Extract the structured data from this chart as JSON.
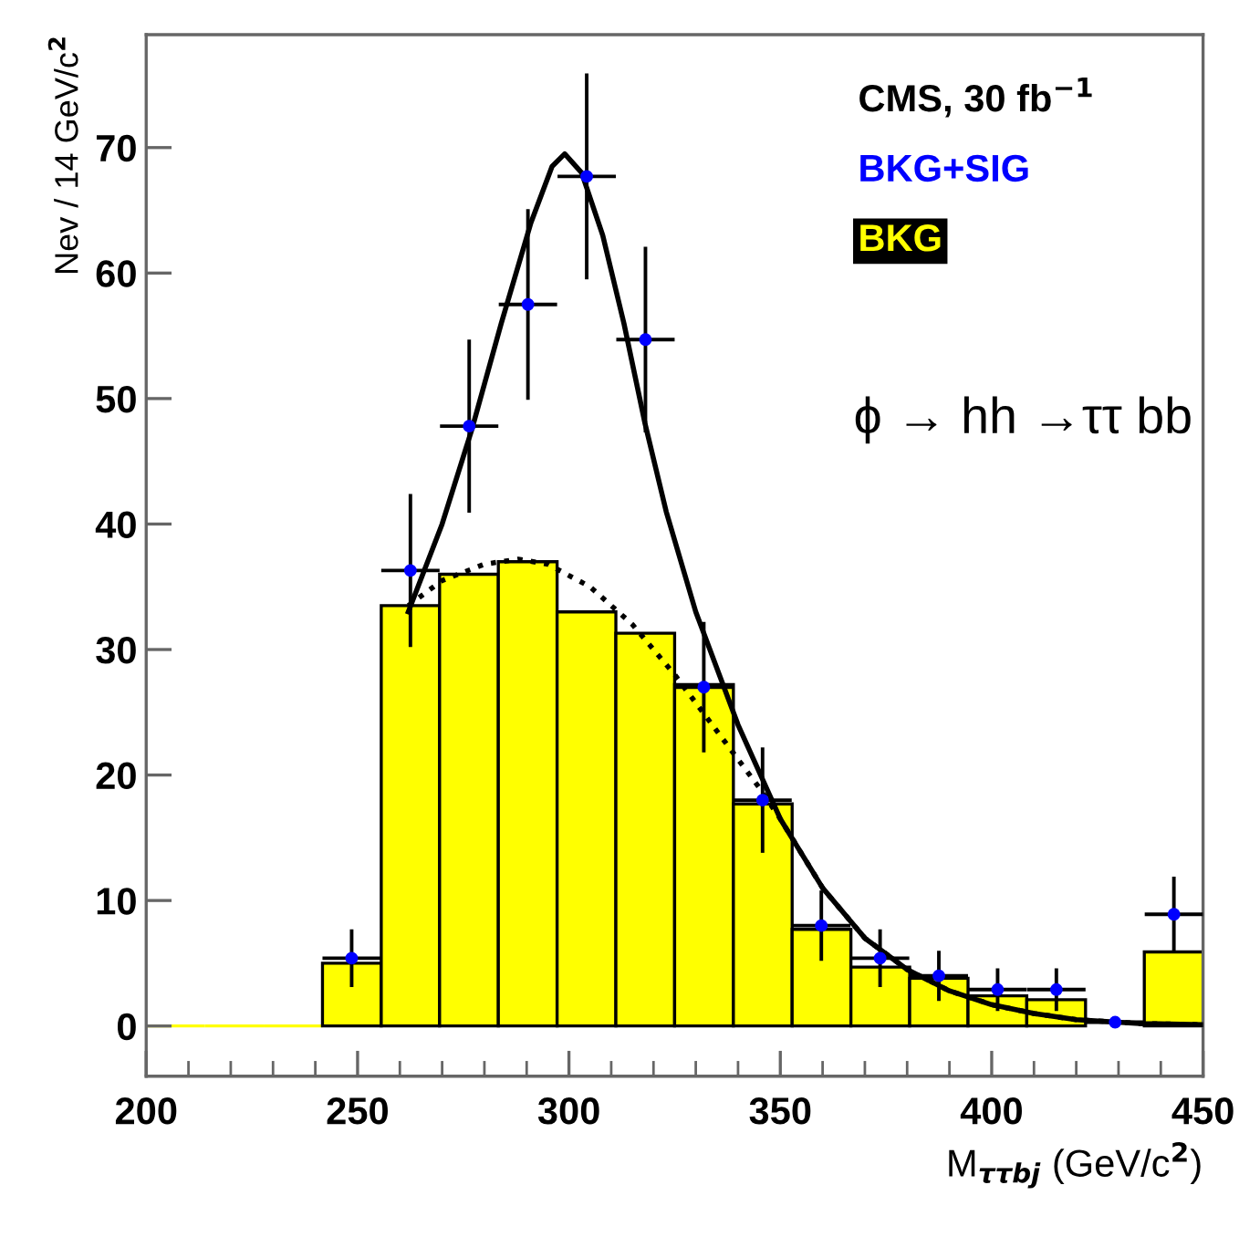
{
  "chart_data": {
    "type": "histogram",
    "xlabel": "M$_{ττbj}$ (GeV/c$^{2}$)",
    "ylabel": "Nev / 14 GeV/c$^{2}$",
    "legend_title": "CMS, 30 fb$^{−1}$",
    "legend": "top right",
    "annotations": [
      "ϕ → hh →ττ bb"
    ],
    "xlim": [
      200,
      450
    ],
    "ylim": [
      -4,
      79
    ],
    "xticks": [
      200,
      {
        "value": 210,
        "label": null
      },
      {
        "value": 220,
        "label": null
      },
      {
        "value": 230,
        "label": null
      },
      {
        "value": 240,
        "label": null
      },
      250,
      {
        "value": 260,
        "label": null
      },
      {
        "value": 270,
        "label": null
      },
      {
        "value": 280,
        "label": null
      },
      {
        "value": 290,
        "label": null
      },
      300,
      {
        "value": 310,
        "label": null
      },
      {
        "value": 320,
        "label": null
      },
      {
        "value": 330,
        "label": null
      },
      {
        "value": 340,
        "label": null
      },
      350,
      {
        "value": 360,
        "label": null
      },
      {
        "value": 370,
        "label": null
      },
      {
        "value": 380,
        "label": null
      },
      {
        "value": 390,
        "label": null
      },
      400,
      {
        "value": 410,
        "label": null
      },
      {
        "value": 420,
        "label": null
      },
      {
        "value": 430,
        "label": null
      },
      {
        "value": 440,
        "label": null
      },
      450
    ],
    "yticks": [
      0,
      10,
      20,
      30,
      40,
      50,
      60,
      70
    ],
    "grid": false,
    "bins": [
      200,
      213.9,
      227.8,
      241.7,
      255.6,
      269.4,
      283.3,
      297.2,
      311.1,
      325,
      338.9,
      352.8,
      366.7,
      380.6,
      394.4,
      408.3,
      422.2,
      436.1,
      450
    ],
    "series": [
      {
        "name": "BKG+SIG",
        "type": "scatter",
        "color": "#0000ff",
        "marker": "circle",
        "x": [
          248.6,
          262.5,
          276.4,
          290.3,
          304.2,
          318.1,
          331.9,
          345.8,
          359.7,
          373.6,
          387.5,
          401.4,
          415.3,
          429.2,
          443.1
        ],
        "values": [
          5.4,
          36.3,
          47.8,
          57.5,
          67.7,
          54.7,
          27,
          18,
          8,
          5.4,
          4,
          2.9,
          2.9,
          0.3,
          8.9
        ],
        "errors": [
          2.3,
          6.1,
          6.9,
          7.6,
          8.2,
          7.4,
          5.2,
          4.2,
          2.8,
          2.3,
          2,
          1.7,
          1.7,
          null,
          3
        ],
        "xerrors": [
          6.9,
          6.9,
          6.9,
          6.9,
          6.9,
          6.9,
          6.9,
          6.9,
          6.9,
          6.9,
          6.9,
          6.9,
          6.9,
          6.9,
          6.9
        ]
      },
      {
        "name": "BKG",
        "color": "#ffff00",
        "values": [
          0,
          0,
          0,
          5,
          33.5,
          36,
          37,
          33,
          31.3,
          27.2,
          17.7,
          7.7,
          4.7,
          3.8,
          2.4,
          2.1,
          null,
          5.9
        ]
      },
      {
        "type": "line",
        "color": "#000000",
        "line_style": "solid",
        "x": [
          262,
          270,
          277,
          284,
          291,
          296,
          299,
          303,
          308,
          313,
          318,
          323,
          330,
          340,
          350,
          360,
          370,
          380,
          390,
          400,
          410,
          420,
          435,
          450
        ],
        "values": [
          33,
          40,
          47.5,
          56,
          64,
          68.5,
          69.5,
          68,
          63,
          56,
          48,
          41,
          33,
          24,
          16.5,
          11,
          7,
          4.5,
          2.8,
          1.7,
          1,
          0.5,
          0.2,
          0.1
        ]
      },
      {
        "type": "line",
        "color": "#000000",
        "line_style": "dotted",
        "x": [
          262,
          270,
          280,
          288,
          295,
          305,
          315,
          325,
          335,
          345,
          350,
          360,
          370,
          380,
          390,
          400,
          410,
          420,
          435,
          450
        ],
        "values": [
          33.5,
          35.5,
          36.8,
          37.2,
          36.8,
          35,
          32,
          28,
          23.5,
          19,
          16.5,
          11,
          7,
          4.5,
          2.8,
          1.7,
          1,
          0.5,
          0.2,
          0.1
        ]
      }
    ]
  }
}
